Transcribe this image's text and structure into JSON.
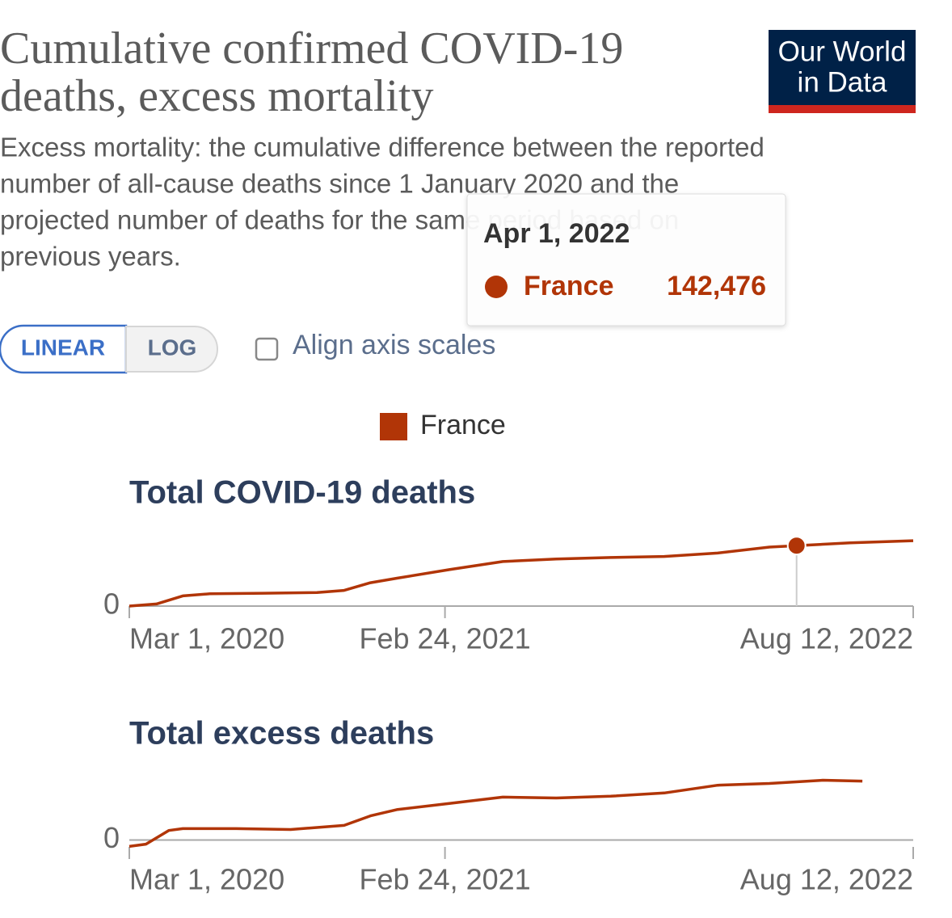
{
  "title": [
    "Cumulative confirmed COVID-19",
    "deaths, excess mortality"
  ],
  "subtitle": [
    "Excess mortality: the cumulative difference between the reported",
    "number of all-cause deaths since 1 January 2020 and the",
    "projected number of deaths for the same period based on",
    "previous years."
  ],
  "logo": [
    "Our World",
    "in Data"
  ],
  "controls": {
    "scale_buttons": [
      "LINEAR",
      "LOG"
    ],
    "checkbox_label": "Align axis scales"
  },
  "tooltip": {
    "date": "Apr 1, 2022",
    "value": 142476,
    "value_label": "142,476"
  },
  "chart_data": [
    {
      "type": "line",
      "title": "Total COVID-19 deaths",
      "x": [
        "2020-03-01",
        "2020-04-01",
        "2020-05-01",
        "2020-06-01",
        "2020-08-01",
        "2020-10-01",
        "2020-11-01",
        "2020-12-01",
        "2021-01-01",
        "2021-03-01",
        "2021-05-01",
        "2021-07-01",
        "2021-09-01",
        "2021-11-01",
        "2022-01-01",
        "2022-03-01",
        "2022-04-01",
        "2022-06-01",
        "2022-08-12"
      ],
      "series": [
        {
          "name": "France",
          "color": "#b13507",
          "values": [
            0,
            5000,
            24000,
            29000,
            30300,
            32000,
            37000,
            55000,
            66000,
            86000,
            105000,
            111000,
            114500,
            117000,
            125000,
            139000,
            142476,
            149000,
            154000
          ]
        }
      ],
      "xlim": [
        "2020-03-01",
        "2022-08-12"
      ],
      "xticks": [
        {
          "value": "2020-03-01",
          "label": "Mar 1, 2020"
        },
        {
          "value": "2021-02-24",
          "label": "Feb 24, 2021"
        },
        {
          "value": "2022-08-12",
          "label": "Aug 12, 2022"
        }
      ],
      "ylim": [
        0,
        200000
      ],
      "yticks": [
        0
      ]
    },
    {
      "type": "line",
      "title": "Total excess deaths",
      "x": [
        "2020-03-01",
        "2020-03-20",
        "2020-04-15",
        "2020-05-01",
        "2020-07-01",
        "2020-09-01",
        "2020-11-01",
        "2020-12-01",
        "2021-01-01",
        "2021-03-01",
        "2021-05-01",
        "2021-07-01",
        "2021-09-01",
        "2021-11-01",
        "2022-01-01",
        "2022-03-01",
        "2022-05-01",
        "2022-06-15"
      ],
      "series": [
        {
          "name": "France",
          "color": "#b13507",
          "values": [
            -14000,
            -9000,
            21000,
            25000,
            25000,
            23000,
            32000,
            53000,
            67000,
            80000,
            94000,
            92000,
            96000,
            103000,
            120000,
            124000,
            131000,
            129000
          ]
        }
      ],
      "xlim": [
        "2020-03-01",
        "2022-08-12"
      ],
      "xticks": [
        {
          "value": "2020-03-01",
          "label": "Mar 1, 2020"
        },
        {
          "value": "2021-02-24",
          "label": "Feb 24, 2021"
        },
        {
          "value": "2022-08-12",
          "label": "Aug 12, 2022"
        }
      ],
      "ylim": [
        -15000,
        185000
      ],
      "yticks": [
        0
      ]
    }
  ]
}
